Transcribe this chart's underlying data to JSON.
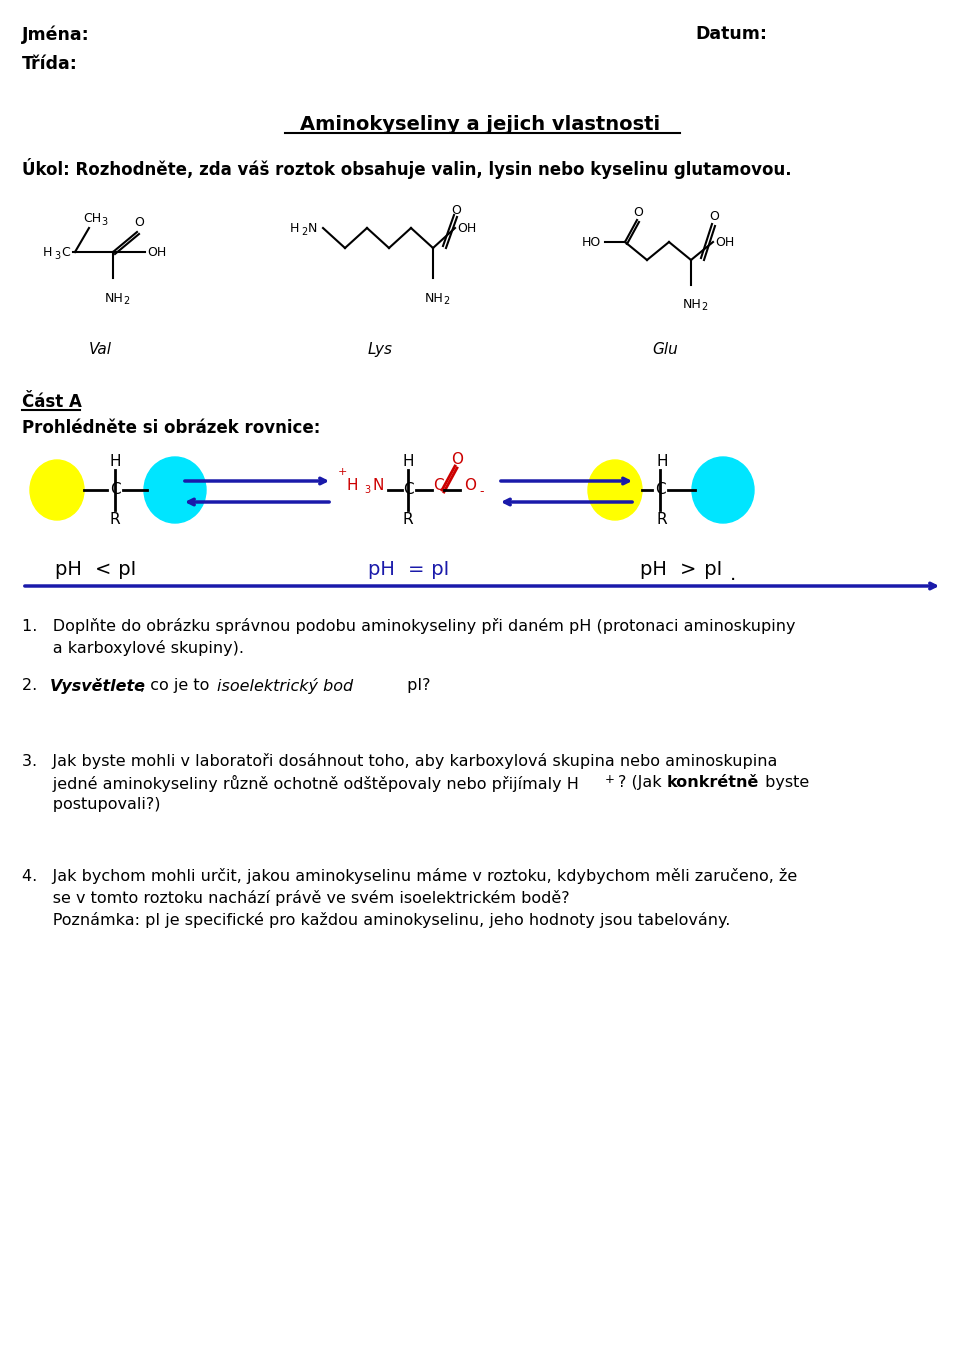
{
  "title": "Aminokyseliny a jejich vlastnosti",
  "jmena_label": "Jména:",
  "datum_label": "Datum:",
  "trida_label": "Třída:",
  "bg_color": "#ffffff",
  "text_color": "#000000",
  "arrow_color": "#1a1aaa",
  "red_color": "#cc0000",
  "yellow_color": "#ffff00",
  "cyan_color": "#00e5ff"
}
